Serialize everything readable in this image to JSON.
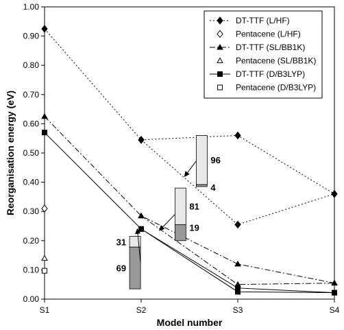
{
  "chart_data": {
    "type": "line",
    "xlabel": "Model number",
    "ylabel": "Reorganisation energy (eV)",
    "categories": [
      "S1",
      "S2",
      "S3",
      "S4"
    ],
    "ylim": [
      0,
      1.0
    ],
    "yticks": [
      "0.00",
      "0.10",
      "0.20",
      "0.30",
      "0.40",
      "0.50",
      "0.60",
      "0.70",
      "0.80",
      "0.90",
      "1.00"
    ],
    "grid": false,
    "legend_position": "top-right",
    "series": [
      {
        "name": "DT-TTF (L/HF)",
        "style": "dotted",
        "marker": "diamond-filled",
        "points": [
          [
            1,
            0.925
          ],
          [
            2,
            0.545
          ],
          [
            3,
            0.56
          ],
          [
            4,
            0.36
          ]
        ]
      },
      {
        "name": "Pentacene (L/HF)",
        "style": "none",
        "marker": "diamond-open",
        "points": [
          [
            1,
            0.31
          ]
        ]
      },
      {
        "name": "DT-TTF (SL/BB1K)",
        "style": "dashdot",
        "marker": "triangle-filled",
        "points": [
          [
            1,
            0.625
          ],
          [
            2,
            0.285
          ],
          [
            3,
            0.12
          ],
          [
            4,
            0.055
          ]
        ]
      },
      {
        "name": "Pentacene (SL/BB1K)",
        "style": "none",
        "marker": "triangle-open",
        "points": [
          [
            1,
            0.14
          ]
        ]
      },
      {
        "name": "DT-TTF (D/B3LYP)",
        "style": "solid",
        "marker": "square-filled",
        "points": [
          [
            1,
            0.57
          ],
          [
            2,
            0.24
          ],
          [
            3,
            0.025
          ],
          [
            4,
            0.022
          ]
        ]
      },
      {
        "name": "Pentacene (D/B3LYP)",
        "style": "none",
        "marker": "square-open",
        "points": [
          [
            1,
            0.097
          ]
        ]
      }
    ],
    "extra_lines": [
      {
        "style": "dotted",
        "marker": "diamond-filled",
        "points": [
          [
            2,
            0.545
          ],
          [
            3,
            0.255
          ],
          [
            4,
            0.36
          ]
        ]
      },
      {
        "style": "dashdot",
        "marker": "triangle-filled",
        "points": [
          [
            2,
            0.285
          ],
          [
            3,
            0.05
          ],
          [
            4,
            0.055
          ]
        ]
      },
      {
        "style": "solid",
        "marker": "square-filled",
        "points": [
          [
            2,
            0.24
          ],
          [
            3,
            0.038
          ],
          [
            4,
            0.022
          ]
        ]
      }
    ],
    "annotations": [
      {
        "bar_x": 2.57,
        "low": 0.385,
        "high": 0.56,
        "split": 0.392,
        "top_label": "96",
        "bottom_label": "4",
        "arrow_to": [
          2.45,
          0.42
        ]
      },
      {
        "bar_x": 2.35,
        "low": 0.2,
        "high": 0.38,
        "split": 0.255,
        "top_label": "81",
        "bottom_label": "19",
        "arrow_to": [
          2.19,
          0.235
        ]
      },
      {
        "bar_x": 1.88,
        "low": 0.035,
        "high": 0.215,
        "split": 0.178,
        "top_label": "31",
        "bottom_label": "69",
        "arrow_to": [
          1.96,
          0.24
        ]
      }
    ]
  }
}
